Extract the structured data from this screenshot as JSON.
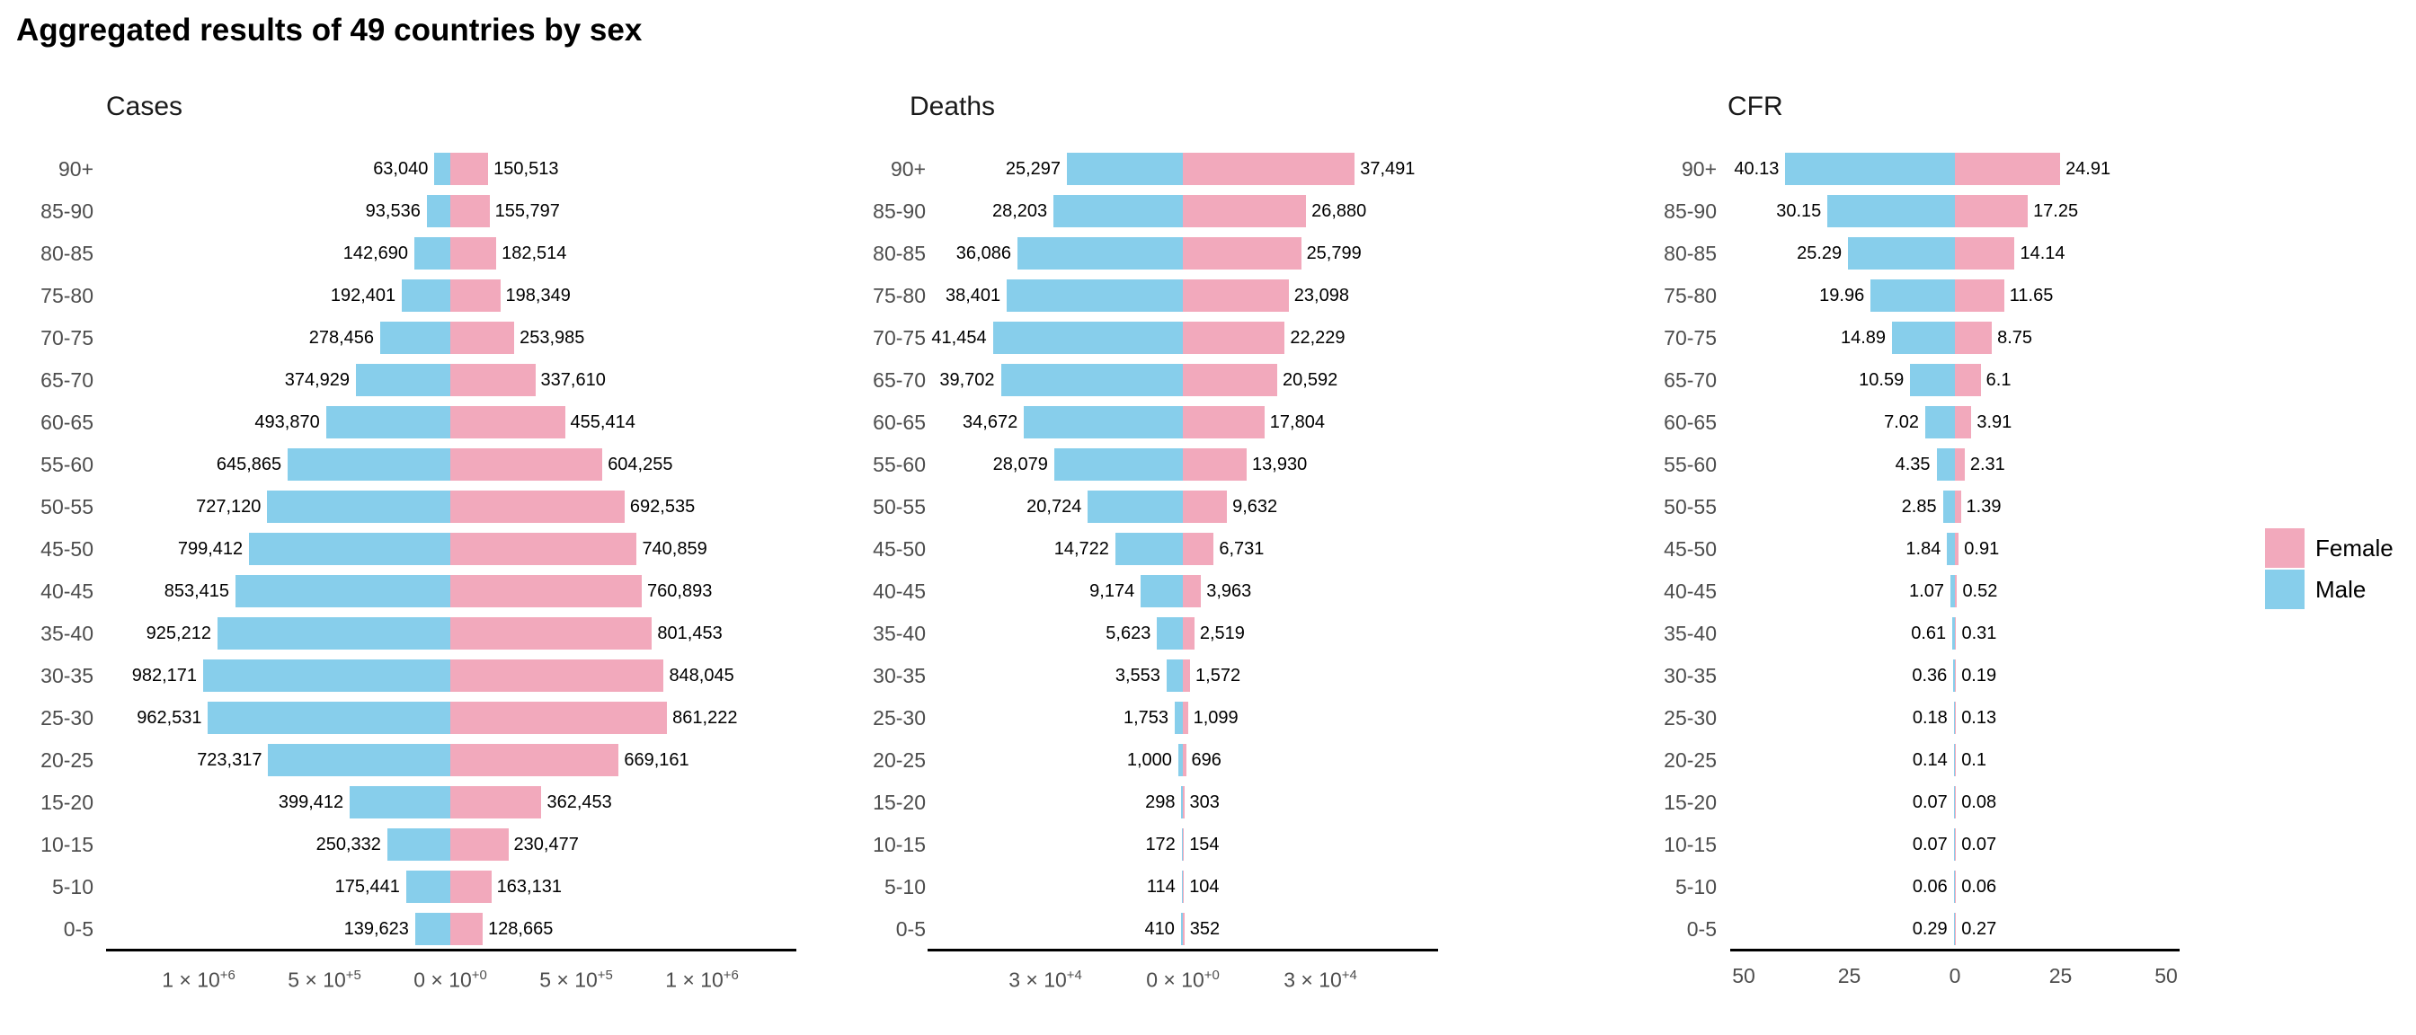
{
  "page_title": "Aggregated results of 49 countries by sex",
  "legend": {
    "position": "right",
    "items": [
      {
        "label": "Female",
        "color": "#F2A9BC"
      },
      {
        "label": "Male",
        "color": "#87CEEB"
      }
    ]
  },
  "chart_data": [
    {
      "type": "bar",
      "subtype": "diverging-pyramid",
      "title": "Cases",
      "categories": [
        "90+",
        "85-90",
        "80-85",
        "75-80",
        "70-75",
        "65-70",
        "60-65",
        "55-60",
        "50-55",
        "45-50",
        "40-45",
        "35-40",
        "30-35",
        "25-30",
        "20-25",
        "15-20",
        "10-15",
        "5-10",
        "0-5"
      ],
      "series": [
        {
          "name": "Male",
          "side": "left",
          "color": "#87CEEB",
          "values": [
            63040,
            93536,
            142690,
            192401,
            278456,
            374929,
            493870,
            645865,
            727120,
            799412,
            853415,
            925212,
            982171,
            962531,
            723317,
            399412,
            250332,
            175441,
            139623
          ],
          "labels": [
            "63,040",
            "93,536",
            "142,690",
            "192,401",
            "278,456",
            "374,929",
            "493,870",
            "645,865",
            "727,120",
            "799,412",
            "853,415",
            "925,212",
            "982,171",
            "962,531",
            "723,317",
            "399,412",
            "250,332",
            "175,441",
            "139,623"
          ]
        },
        {
          "name": "Female",
          "side": "right",
          "color": "#F2A9BC",
          "values": [
            150513,
            155797,
            182514,
            198349,
            253985,
            337610,
            455414,
            604255,
            692535,
            740859,
            760893,
            801453,
            848045,
            861222,
            669161,
            362453,
            230477,
            163131,
            128665
          ],
          "labels": [
            "150,513",
            "155,797",
            "182,514",
            "198,349",
            "253,985",
            "337,610",
            "455,414",
            "604,255",
            "692,535",
            "740,859",
            "760,893",
            "801,453",
            "848,045",
            "861,222",
            "669,161",
            "362,453",
            "230,477",
            "163,131",
            "128,665"
          ]
        }
      ],
      "x_axis": {
        "xlim": [
          -1375000,
          1375000
        ],
        "ticks": [
          {
            "value": -1000000,
            "mantissa": "1 × 10",
            "exp": "+6"
          },
          {
            "value": -500000,
            "mantissa": "5 × 10",
            "exp": "+5"
          },
          {
            "value": 0,
            "mantissa": "0 × 10",
            "exp": "+0"
          },
          {
            "value": 500000,
            "mantissa": "5 × 10",
            "exp": "+5"
          },
          {
            "value": 1000000,
            "mantissa": "1 × 10",
            "exp": "+6"
          }
        ]
      }
    },
    {
      "type": "bar",
      "subtype": "diverging-pyramid",
      "title": "Deaths",
      "categories": [
        "90+",
        "85-90",
        "80-85",
        "75-80",
        "70-75",
        "65-70",
        "60-65",
        "55-60",
        "50-55",
        "45-50",
        "40-45",
        "35-40",
        "30-35",
        "25-30",
        "20-25",
        "15-20",
        "10-15",
        "5-10",
        "0-5"
      ],
      "series": [
        {
          "name": "Male",
          "side": "left",
          "color": "#87CEEB",
          "values": [
            25297,
            28203,
            36086,
            38401,
            41454,
            39702,
            34672,
            28079,
            20724,
            14722,
            9174,
            5623,
            3553,
            1753,
            1000,
            298,
            172,
            114,
            410
          ],
          "labels": [
            "25,297",
            "28,203",
            "36,086",
            "38,401",
            "41,454",
            "39,702",
            "34,672",
            "28,079",
            "20,724",
            "14,722",
            "9,174",
            "5,623",
            "3,553",
            "1,753",
            "1,000",
            "298",
            "172",
            "114",
            "410"
          ]
        },
        {
          "name": "Female",
          "side": "right",
          "color": "#F2A9BC",
          "values": [
            37491,
            26880,
            25799,
            23098,
            22229,
            20592,
            17804,
            13930,
            9632,
            6731,
            3963,
            2519,
            1572,
            1099,
            696,
            303,
            154,
            104,
            352
          ],
          "labels": [
            "37,491",
            "26,880",
            "25,799",
            "23,098",
            "22,229",
            "20,592",
            "17,804",
            "13,930",
            "9,632",
            "6,731",
            "3,963",
            "2,519",
            "1,572",
            "1,099",
            "696",
            "303",
            "154",
            "104",
            "352"
          ]
        }
      ],
      "x_axis": {
        "xlim": [
          -55700,
          55700
        ],
        "ticks": [
          {
            "value": -30000,
            "mantissa": "3 × 10",
            "exp": "+4"
          },
          {
            "value": 0,
            "mantissa": "0 × 10",
            "exp": "+0"
          },
          {
            "value": 30000,
            "mantissa": "3 × 10",
            "exp": "+4"
          }
        ]
      }
    },
    {
      "type": "bar",
      "subtype": "diverging-pyramid",
      "title": "CFR",
      "categories": [
        "90+",
        "85-90",
        "80-85",
        "75-80",
        "70-75",
        "65-70",
        "60-65",
        "55-60",
        "50-55",
        "45-50",
        "40-45",
        "35-40",
        "30-35",
        "25-30",
        "20-25",
        "15-20",
        "10-15",
        "5-10",
        "0-5"
      ],
      "series": [
        {
          "name": "Male",
          "side": "left",
          "color": "#87CEEB",
          "values": [
            40.13,
            30.15,
            25.29,
            19.96,
            14.89,
            10.59,
            7.02,
            4.35,
            2.85,
            1.84,
            1.07,
            0.61,
            0.36,
            0.18,
            0.14,
            0.07,
            0.07,
            0.06,
            0.29
          ],
          "labels": [
            "40.13",
            "30.15",
            "25.29",
            "19.96",
            "14.89",
            "10.59",
            "7.02",
            "4.35",
            "2.85",
            "1.84",
            "1.07",
            "0.61",
            "0.36",
            "0.18",
            "0.14",
            "0.07",
            "0.07",
            "0.06",
            "0.29"
          ]
        },
        {
          "name": "Female",
          "side": "right",
          "color": "#F2A9BC",
          "values": [
            24.91,
            17.25,
            14.14,
            11.65,
            8.75,
            6.1,
            3.91,
            2.31,
            1.39,
            0.91,
            0.52,
            0.31,
            0.19,
            0.13,
            0.1,
            0.08,
            0.07,
            0.06,
            0.27
          ],
          "labels": [
            "24.91",
            "17.25",
            "14.14",
            "11.65",
            "8.75",
            "6.1",
            "3.91",
            "2.31",
            "1.39",
            "0.91",
            "0.52",
            "0.31",
            "0.19",
            "0.13",
            "0.1",
            "0.08",
            "0.07",
            "0.06",
            "0.27"
          ]
        }
      ],
      "x_axis": {
        "xlim": [
          -53,
          53
        ],
        "ticks": [
          {
            "value": -50,
            "mantissa": "50",
            "exp": ""
          },
          {
            "value": -25,
            "mantissa": "25",
            "exp": ""
          },
          {
            "value": 0,
            "mantissa": "0",
            "exp": ""
          },
          {
            "value": 25,
            "mantissa": "25",
            "exp": ""
          },
          {
            "value": 50,
            "mantissa": "50",
            "exp": ""
          }
        ]
      }
    }
  ]
}
